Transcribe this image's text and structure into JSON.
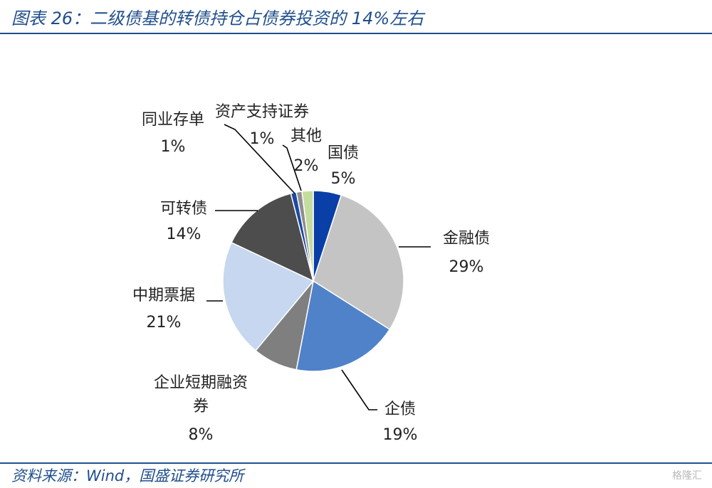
{
  "header": {
    "title": "图表 26：二级债基的转债持仓占债券投资的 14%左右"
  },
  "footer": {
    "source": "资料来源：Wind，国盛证券研究所",
    "watermark": "格隆汇"
  },
  "chart_data": {
    "type": "pie",
    "title": "",
    "slices": [
      {
        "name": "国债",
        "value": 5,
        "label": "5%",
        "color": "#0a3fa8"
      },
      {
        "name": "金融债",
        "value": 29,
        "label": "29%",
        "color": "#c4c4c4"
      },
      {
        "name": "企债",
        "value": 19,
        "label": "19%",
        "color": "#4f82c9"
      },
      {
        "name": "企业短期融资券",
        "value": 8,
        "label": "8%",
        "color": "#7f7f7f"
      },
      {
        "name": "中期票据",
        "value": 21,
        "label": "21%",
        "color": "#c6d7ef"
      },
      {
        "name": "可转债",
        "value": 14,
        "label": "14%",
        "color": "#4d4d4d"
      },
      {
        "name": "同业存单",
        "value": 1,
        "label": "1%",
        "color": "#1d4aa3"
      },
      {
        "name": "资产支持证券",
        "value": 1,
        "label": "1%",
        "color": "#8e8e8e"
      },
      {
        "name": "其他",
        "value": 2,
        "label": "2%",
        "color": "#c5dc9f"
      }
    ]
  }
}
